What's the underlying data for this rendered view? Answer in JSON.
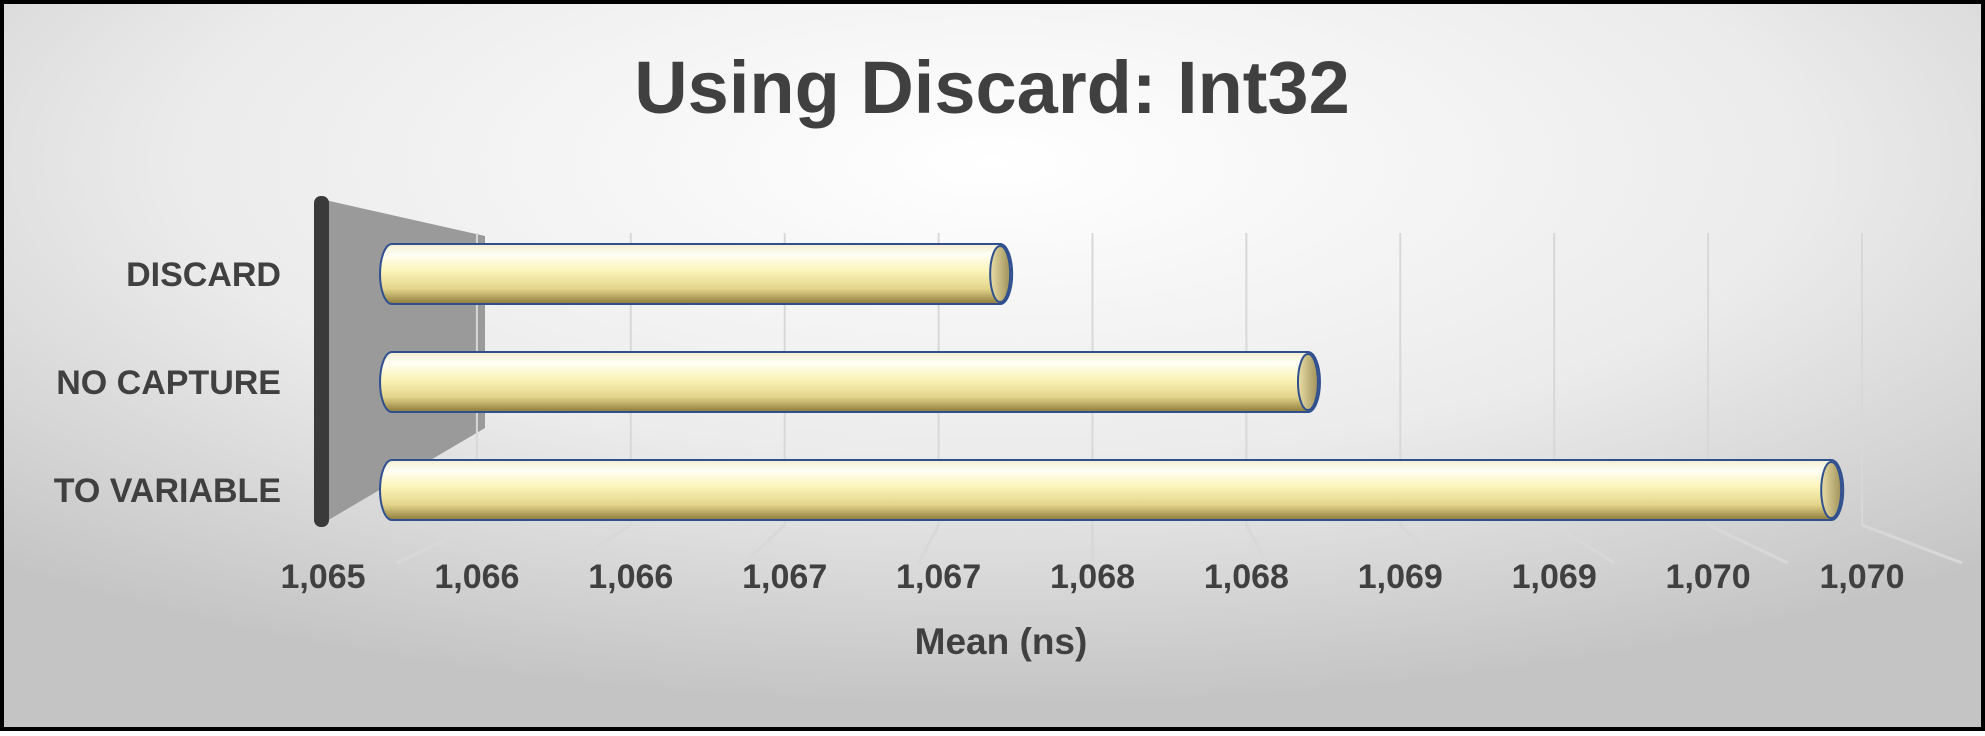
{
  "chart_data": {
    "type": "bar",
    "orientation": "horizontal",
    "style": "3d-cylinder",
    "title": "Using Discard: Int32",
    "xlabel": "Mean (ns)",
    "ylabel": "",
    "categories": [
      "DISCARD",
      "NO CAPTURE",
      "TO VARIABLE"
    ],
    "values": [
      1067.2,
      1068.2,
      1069.9
    ],
    "xlim": [
      1065,
      1070
    ],
    "x_tick_labels": [
      "1,065",
      "1,066",
      "1,066",
      "1,067",
      "1,067",
      "1,068",
      "1,068",
      "1,069",
      "1,069",
      "1,070",
      "1,070"
    ],
    "grid": true,
    "legend": "none",
    "colors": {
      "bar_fill_light": "#fffde8",
      "bar_fill_mid": "#f6eca0",
      "bar_fill_dark": "#8c7a3a",
      "bar_outline": "#2f4f8f",
      "text": "#404040",
      "side_wall": "#9a9a9a",
      "axis_post": "#3a3a3a",
      "grid": "#d8d8d8",
      "frame": "#000000"
    }
  }
}
